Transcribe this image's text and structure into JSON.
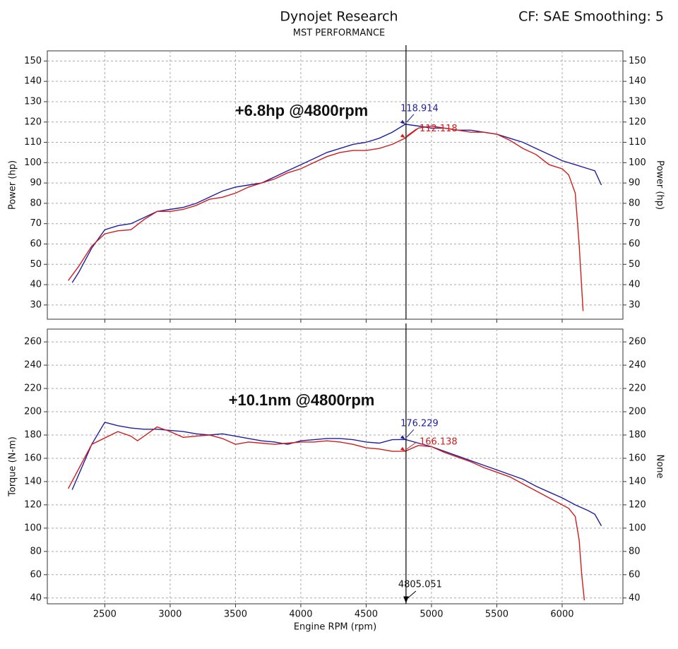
{
  "header": {
    "title": "Dynojet Research",
    "subtitle": "MST PERFORMANCE",
    "settings": "CF: SAE Smoothing: 5"
  },
  "chart_data": [
    {
      "type": "line",
      "annotation": "+6.8hp @4800rpm",
      "ylabel": "Power (hp)",
      "y2label": "Power (hp)",
      "xlim": [
        2060,
        6465
      ],
      "xticks": [
        2500,
        3000,
        3500,
        4000,
        4500,
        5000,
        5500,
        6000
      ],
      "xtick_labels": false,
      "ylim": [
        23,
        155
      ],
      "yticks": [
        30,
        40,
        50,
        60,
        70,
        80,
        90,
        100,
        110,
        120,
        130,
        140,
        150
      ],
      "grid": true,
      "cursor_x": 4805.051,
      "series": [
        {
          "color": "#1f1f9e",
          "x": [
            2250,
            2300,
            2400,
            2500,
            2600,
            2700,
            2800,
            2900,
            3000,
            3100,
            3200,
            3300,
            3400,
            3500,
            3600,
            3700,
            3800,
            3900,
            4000,
            4100,
            4200,
            4300,
            4400,
            4500,
            4600,
            4700,
            4800,
            4900,
            5000,
            5100,
            5200,
            5300,
            5400,
            5500,
            5600,
            5700,
            5800,
            5900,
            6000,
            6100,
            6200,
            6250,
            6300
          ],
          "values": [
            41,
            46,
            58,
            67,
            69,
            70,
            73,
            76,
            77,
            78,
            80,
            83,
            86,
            88,
            89,
            90,
            93,
            96,
            99,
            102,
            105,
            107,
            109,
            110,
            112,
            115,
            118.9,
            118,
            117,
            117,
            116,
            116,
            115,
            114,
            112,
            110,
            107,
            104,
            101,
            99,
            97,
            96,
            89
          ]
        },
        {
          "color": "#d01c1c",
          "x": [
            2220,
            2300,
            2400,
            2500,
            2600,
            2700,
            2800,
            2900,
            3000,
            3100,
            3200,
            3300,
            3400,
            3500,
            3600,
            3700,
            3800,
            3900,
            4000,
            4100,
            4200,
            4300,
            4400,
            4500,
            4600,
            4700,
            4800,
            4900,
            5000,
            5100,
            5200,
            5300,
            5400,
            5500,
            5600,
            5700,
            5800,
            5900,
            6000,
            6050,
            6100,
            6130,
            6160
          ],
          "values": [
            42,
            49,
            59,
            65,
            66.5,
            67,
            72,
            76,
            76,
            77,
            79,
            82,
            83,
            85,
            88,
            90,
            92,
            95,
            97,
            100,
            103,
            105,
            106,
            106,
            107,
            109,
            112.1,
            117,
            118,
            117,
            116,
            115,
            115,
            114,
            111,
            107,
            104,
            99,
            97,
            94,
            85,
            60,
            27
          ]
        }
      ],
      "markers": [
        {
          "x": 4800,
          "y": 118.914,
          "color": "#1f1f9e"
        },
        {
          "x": 4800,
          "y": 112.118,
          "color": "#d01c1c"
        }
      ]
    },
    {
      "type": "line",
      "annotation": "+10.1nm @4800rpm",
      "ylabel": "Torque (N-m)",
      "y2label": "None",
      "xlabel": "Engine RPM (rpm)",
      "xlim": [
        2060,
        6465
      ],
      "xticks": [
        2500,
        3000,
        3500,
        4000,
        4500,
        5000,
        5500,
        6000
      ],
      "xtick_labels": true,
      "ylim": [
        35,
        271
      ],
      "yticks": [
        40,
        60,
        80,
        100,
        120,
        140,
        160,
        180,
        200,
        220,
        240,
        260
      ],
      "grid": true,
      "cursor_x": 4805.051,
      "series": [
        {
          "color": "#1f1f9e",
          "x": [
            2250,
            2400,
            2500,
            2600,
            2700,
            2800,
            2900,
            3000,
            3100,
            3200,
            3300,
            3400,
            3500,
            3600,
            3700,
            3800,
            3900,
            4000,
            4100,
            4200,
            4300,
            4400,
            4500,
            4600,
            4700,
            4800,
            4900,
            5000,
            5100,
            5200,
            5300,
            5400,
            5500,
            5600,
            5700,
            5800,
            5900,
            6000,
            6100,
            6200,
            6250,
            6300
          ],
          "values": [
            133,
            172,
            191,
            188,
            186,
            185,
            185,
            184,
            183,
            181,
            180,
            181,
            179,
            177,
            175,
            174,
            172,
            175,
            176,
            177,
            177,
            176,
            174,
            173,
            176,
            176.2,
            173,
            170,
            166,
            162,
            158,
            154,
            150,
            146,
            142,
            136,
            131,
            126,
            120,
            115,
            112,
            102
          ]
        },
        {
          "color": "#d01c1c",
          "x": [
            2220,
            2400,
            2600,
            2700,
            2750,
            2900,
            3000,
            3100,
            3200,
            3300,
            3400,
            3500,
            3600,
            3700,
            3800,
            3900,
            4000,
            4100,
            4200,
            4300,
            4400,
            4500,
            4600,
            4700,
            4800,
            4900,
            5000,
            5100,
            5200,
            5300,
            5400,
            5500,
            5600,
            5700,
            5800,
            5900,
            6000,
            6050,
            6100,
            6130,
            6150,
            6170
          ],
          "values": [
            134,
            172,
            183,
            179,
            175,
            187,
            183,
            178,
            179,
            180,
            177,
            172,
            174,
            173,
            172,
            173,
            174,
            174,
            175,
            174,
            172,
            169,
            168,
            166,
            166.1,
            171,
            170,
            165,
            161,
            157,
            152,
            148,
            144,
            138,
            132,
            126,
            120,
            117,
            110,
            90,
            60,
            38
          ]
        }
      ],
      "markers": [
        {
          "x": 4800,
          "y": 176.229,
          "color": "#1f1f9e"
        },
        {
          "x": 4800,
          "y": 166.138,
          "color": "#d01c1c"
        }
      ]
    }
  ]
}
